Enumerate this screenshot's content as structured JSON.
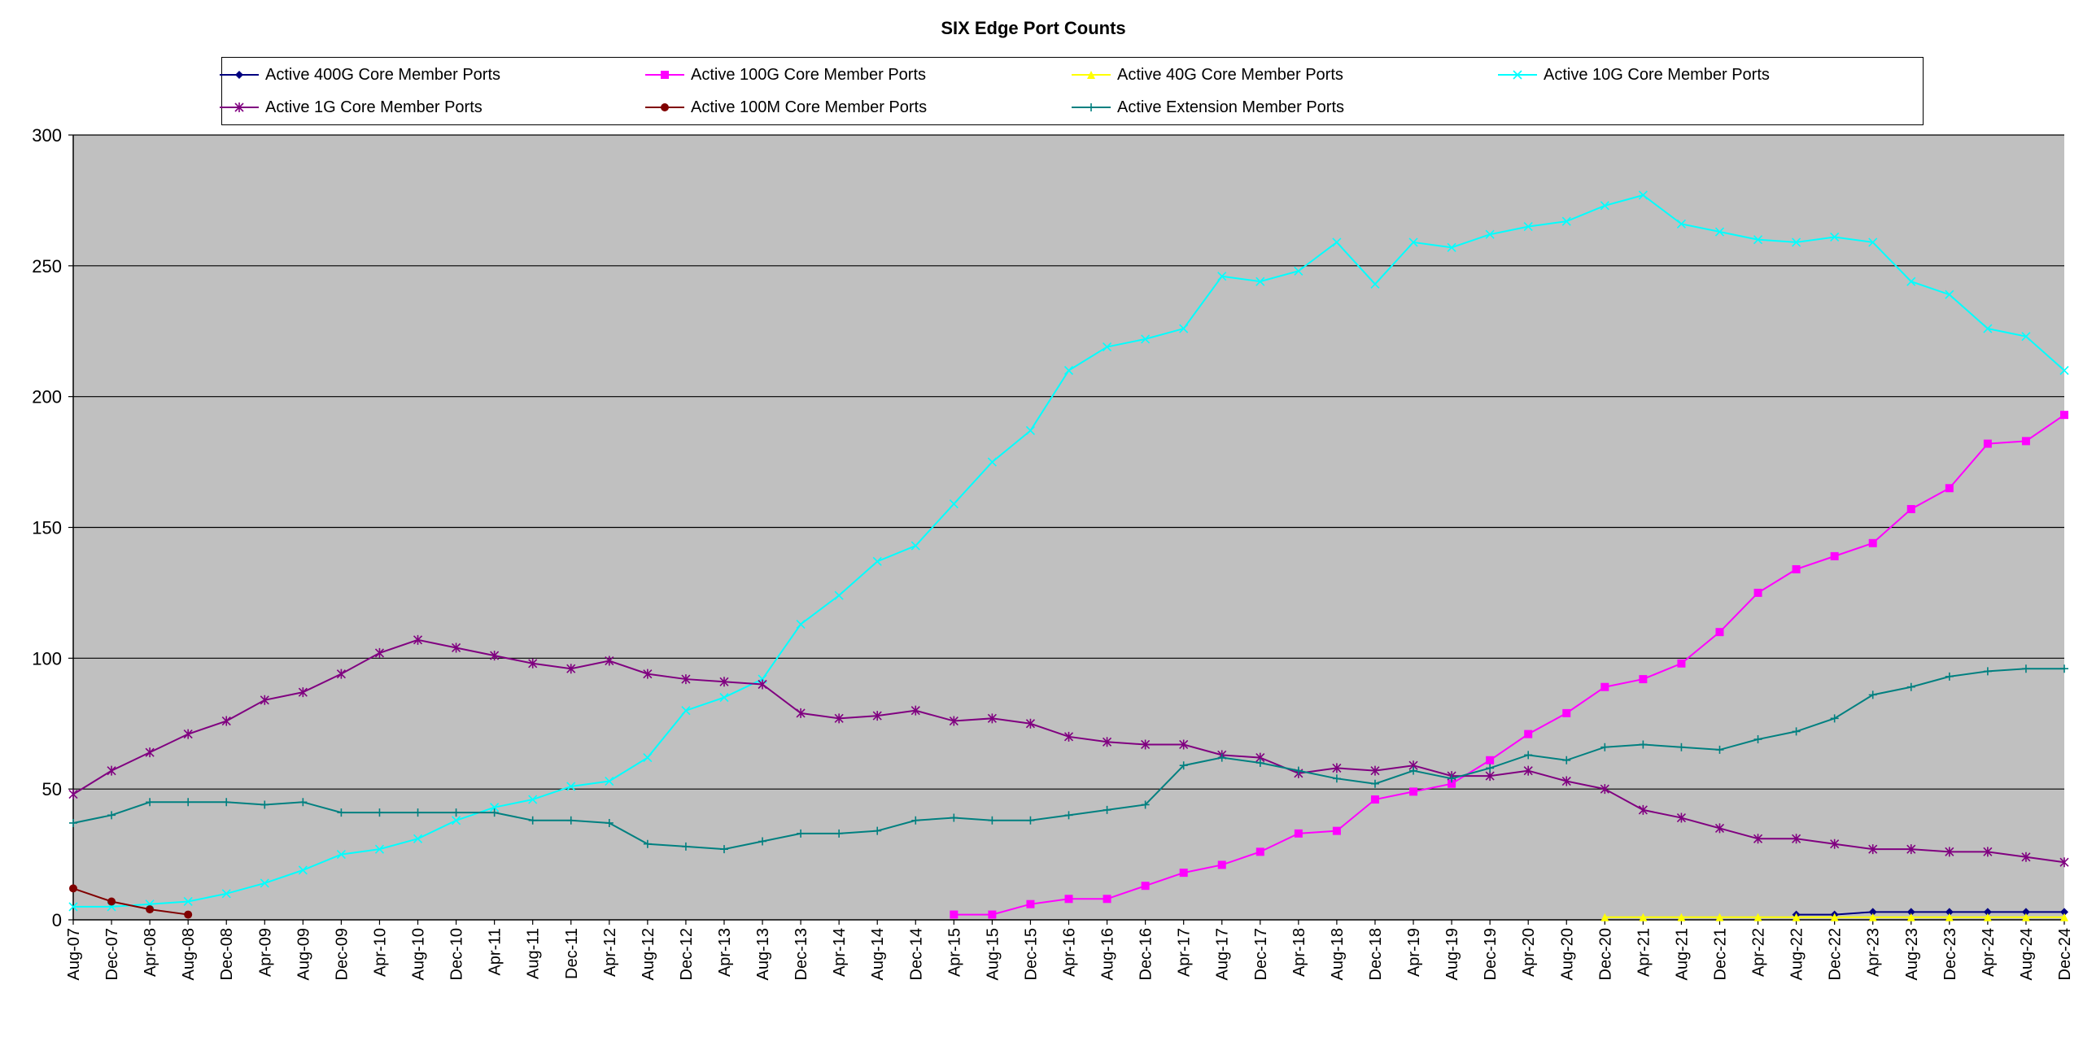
{
  "chart_data": {
    "type": "line",
    "title": "SIX Edge Port Counts",
    "xlabel": "",
    "ylabel": "",
    "ylim": [
      0,
      300
    ],
    "yticks": [
      "0",
      "50",
      "100",
      "150",
      "200",
      "250",
      "300"
    ],
    "grid": true,
    "legend_placement": "top",
    "plot_background": "#c0c0c0",
    "categories": [
      "Aug-07",
      "Dec-07",
      "Apr-08",
      "Aug-08",
      "Dec-08",
      "Apr-09",
      "Aug-09",
      "Dec-09",
      "Apr-10",
      "Aug-10",
      "Dec-10",
      "Apr-11",
      "Aug-11",
      "Dec-11",
      "Apr-12",
      "Aug-12",
      "Dec-12",
      "Apr-13",
      "Aug-13",
      "Dec-13",
      "Apr-14",
      "Aug-14",
      "Dec-14",
      "Apr-15",
      "Aug-15",
      "Dec-15",
      "Apr-16",
      "Aug-16",
      "Dec-16",
      "Apr-17",
      "Aug-17",
      "Dec-17",
      "Apr-18",
      "Aug-18",
      "Dec-18",
      "Apr-19",
      "Aug-19",
      "Dec-19",
      "Apr-20",
      "Aug-20",
      "Dec-20",
      "Apr-21",
      "Aug-21",
      "Dec-21",
      "Apr-22",
      "Aug-22",
      "Dec-22",
      "Apr-23",
      "Aug-23",
      "Dec-23",
      "Apr-24",
      "Aug-24",
      "Dec-24"
    ],
    "series": [
      {
        "name": "Active 400G Core Member Ports",
        "color": "#000080",
        "marker": "diamond",
        "values": [
          null,
          null,
          null,
          null,
          null,
          null,
          null,
          null,
          null,
          null,
          null,
          null,
          null,
          null,
          null,
          null,
          null,
          null,
          null,
          null,
          null,
          null,
          null,
          null,
          null,
          null,
          null,
          null,
          null,
          null,
          null,
          null,
          null,
          null,
          null,
          null,
          null,
          null,
          null,
          null,
          null,
          null,
          null,
          null,
          null,
          2,
          2,
          3,
          3,
          3,
          3,
          3,
          3
        ]
      },
      {
        "name": "Active 100G Core Member Ports",
        "color": "#ff00ff",
        "marker": "square",
        "values": [
          null,
          null,
          null,
          null,
          null,
          null,
          null,
          null,
          null,
          null,
          null,
          null,
          null,
          null,
          null,
          null,
          null,
          null,
          null,
          null,
          null,
          null,
          null,
          2,
          2,
          6,
          8,
          8,
          13,
          18,
          21,
          26,
          33,
          34,
          46,
          49,
          52,
          61,
          71,
          79,
          89,
          92,
          98,
          110,
          125,
          134,
          139,
          144,
          157,
          165,
          182,
          183,
          193
        ]
      },
      {
        "name": "Active 40G Core Member Ports",
        "color": "#ffff00",
        "marker": "triangle",
        "values": [
          null,
          null,
          null,
          null,
          null,
          null,
          null,
          null,
          null,
          null,
          null,
          null,
          null,
          null,
          null,
          null,
          null,
          null,
          null,
          null,
          null,
          null,
          null,
          null,
          null,
          null,
          null,
          null,
          null,
          null,
          null,
          null,
          null,
          null,
          null,
          null,
          null,
          null,
          null,
          null,
          1,
          1,
          1,
          1,
          1,
          1,
          1,
          1,
          1,
          1,
          1,
          1,
          1
        ]
      },
      {
        "name": "Active 10G Core Member Ports",
        "color": "#00ffff",
        "marker": "x",
        "values": [
          5,
          5,
          6,
          7,
          10,
          14,
          19,
          25,
          27,
          31,
          38,
          43,
          46,
          51,
          53,
          62,
          80,
          85,
          92,
          113,
          124,
          137,
          143,
          159,
          175,
          187,
          210,
          219,
          222,
          226,
          246,
          244,
          248,
          259,
          243,
          259,
          257,
          262,
          265,
          267,
          273,
          277,
          266,
          263,
          260,
          259,
          261,
          259,
          244,
          239,
          226,
          223,
          210
        ]
      },
      {
        "name": "Active 1G Core Member Ports",
        "color": "#800080",
        "marker": "star",
        "values": [
          48,
          57,
          64,
          71,
          76,
          84,
          87,
          94,
          102,
          107,
          104,
          101,
          98,
          96,
          99,
          94,
          92,
          91,
          90,
          79,
          77,
          78,
          80,
          76,
          77,
          75,
          70,
          68,
          67,
          67,
          63,
          62,
          56,
          58,
          57,
          59,
          55,
          55,
          57,
          53,
          50,
          42,
          39,
          35,
          31,
          31,
          29,
          27,
          27,
          26,
          26,
          24,
          22
        ]
      },
      {
        "name": "Active 100M Core Member Ports",
        "color": "#800000",
        "marker": "circle",
        "values": [
          12,
          7,
          4,
          2,
          null,
          null,
          null,
          null,
          null,
          null,
          null,
          null,
          null,
          null,
          null,
          null,
          null,
          null,
          null,
          null,
          null,
          null,
          null,
          null,
          null,
          null,
          null,
          null,
          null,
          null,
          null,
          null,
          null,
          null,
          null,
          null,
          null,
          null,
          null,
          null,
          null,
          null,
          null,
          null,
          null,
          null,
          null,
          null,
          null,
          null,
          null,
          null,
          null
        ]
      },
      {
        "name": "Active Extension Member Ports",
        "color": "#008080",
        "marker": "plus",
        "values": [
          37,
          40,
          45,
          45,
          45,
          44,
          45,
          41,
          41,
          41,
          41,
          41,
          38,
          38,
          37,
          29,
          28,
          27,
          30,
          33,
          33,
          34,
          38,
          39,
          38,
          38,
          40,
          42,
          44,
          59,
          62,
          60,
          57,
          54,
          52,
          57,
          54,
          58,
          63,
          61,
          66,
          67,
          66,
          65,
          69,
          72,
          77,
          86,
          89,
          93,
          95,
          96,
          96
        ]
      }
    ]
  }
}
